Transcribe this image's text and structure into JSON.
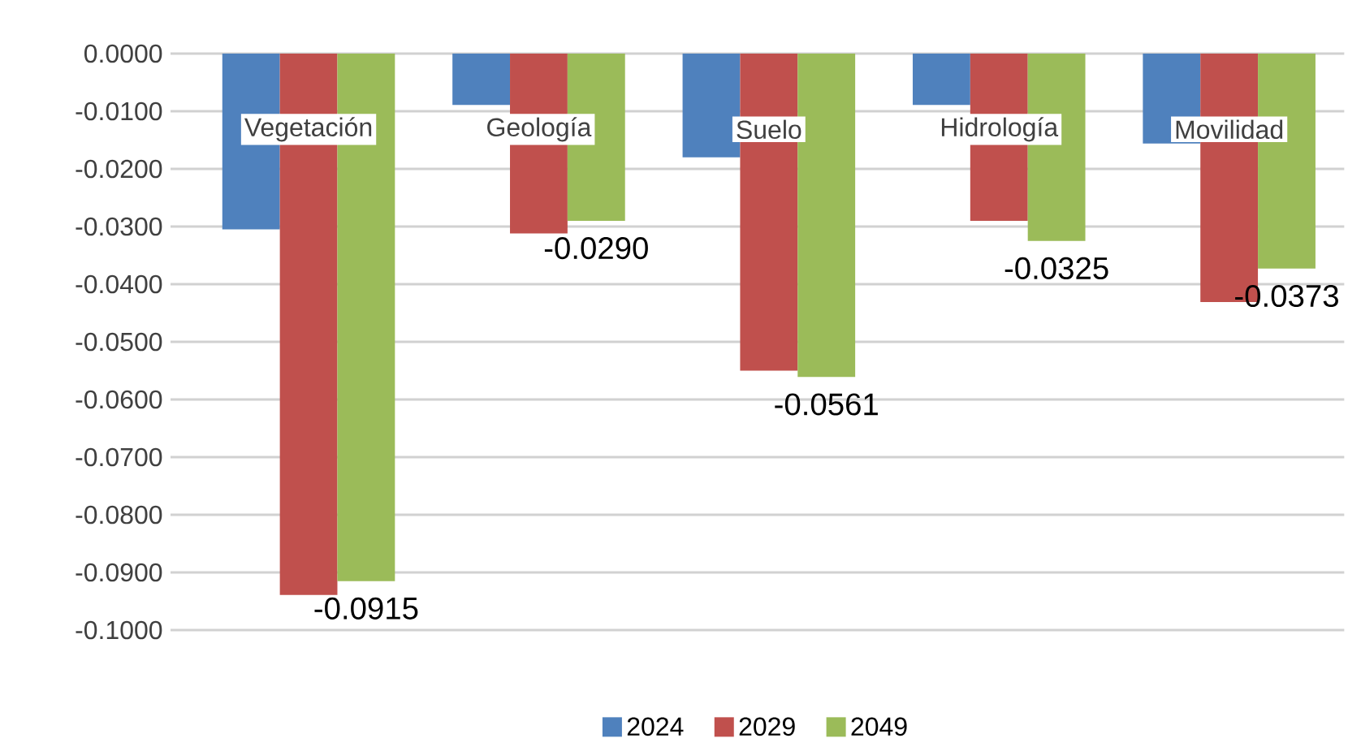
{
  "chart_data": {
    "type": "bar",
    "categories": [
      "Vegetación",
      "Geología",
      "Suelo",
      "Hidrología",
      "Movilidad"
    ],
    "series": [
      {
        "name": "2024",
        "color": "#4f81bd",
        "values": [
          -0.0305,
          -0.0089,
          -0.018,
          -0.0089,
          -0.0156
        ]
      },
      {
        "name": "2029",
        "color": "#c0504d",
        "values": [
          -0.0939,
          -0.0312,
          -0.055,
          -0.029,
          -0.0431
        ]
      },
      {
        "name": "2049",
        "color": "#9bbb59",
        "values": [
          -0.0915,
          -0.029,
          -0.0561,
          -0.0325,
          -0.0373
        ],
        "value_labels": [
          "-0.0915",
          "-0.0290",
          "-0.0561",
          "-0.0325",
          "-0.0373"
        ]
      }
    ],
    "ylim": [
      -0.1,
      0
    ],
    "yticks": [
      {
        "value": 0,
        "label": "0.0000"
      },
      {
        "value": -0.01,
        "label": "-0.0100"
      },
      {
        "value": -0.02,
        "label": "-0.0200"
      },
      {
        "value": -0.03,
        "label": "-0.0300"
      },
      {
        "value": -0.04,
        "label": "-0.0400"
      },
      {
        "value": -0.05,
        "label": "-0.0500"
      },
      {
        "value": -0.06,
        "label": "-0.0600"
      },
      {
        "value": -0.07,
        "label": "-0.0700"
      },
      {
        "value": -0.08,
        "label": "-0.0800"
      },
      {
        "value": -0.09,
        "label": "-0.0900"
      },
      {
        "value": -0.1,
        "label": "-0.1000"
      }
    ],
    "grid": "y",
    "legend": "bottom"
  }
}
